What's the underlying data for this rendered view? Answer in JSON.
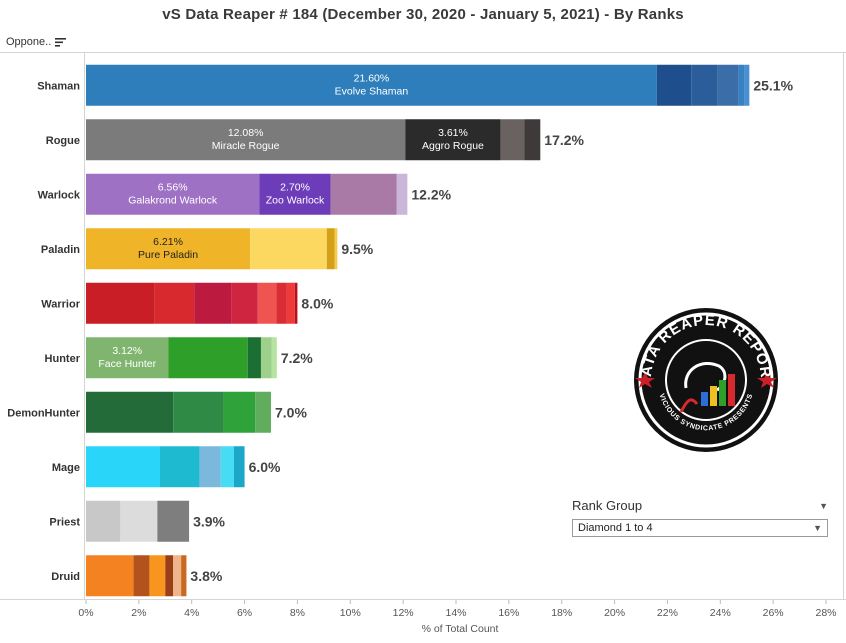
{
  "title": "vS Data Reaper #  184 (December 30, 2020 - January 5, 2021) - By Ranks",
  "column_header": "Oppone..",
  "rank_group": {
    "label": "Rank Group",
    "selected": "Diamond 1 to 4"
  },
  "logo": {
    "text_top": "DATA REAPER REPORT",
    "text_bottom": "VICIOUS SYNDICATE PRESENTS"
  },
  "chart_data": {
    "type": "bar",
    "orientation": "horizontal",
    "stacked": true,
    "xlabel": "% of Total Count",
    "xlim": [
      0,
      28
    ],
    "xticks": [
      0,
      2,
      4,
      6,
      8,
      10,
      12,
      14,
      16,
      18,
      20,
      22,
      24,
      26,
      28
    ],
    "xtick_format": "{v}%",
    "grid": false,
    "categories": [
      "Shaman",
      "Rogue",
      "Warlock",
      "Paladin",
      "Warrior",
      "Hunter",
      "DemonHunter",
      "Mage",
      "Priest",
      "Druid"
    ],
    "totals": [
      "25.1%",
      "17.2%",
      "12.2%",
      "9.5%",
      "8.0%",
      "7.2%",
      "7.0%",
      "6.0%",
      "3.9%",
      "3.8%"
    ],
    "bars": [
      {
        "category": "Shaman",
        "segments": [
          {
            "value": 21.6,
            "color": "#2e7ebc",
            "label": "21.60%",
            "name": "Evolve Shaman"
          },
          {
            "value": 1.3,
            "color": "#1f4e8c"
          },
          {
            "value": 1.0,
            "color": "#2a5d9a"
          },
          {
            "value": 0.8,
            "color": "#3b6ea8"
          },
          {
            "value": 0.2,
            "color": "#3680c4"
          },
          {
            "value": 0.2,
            "color": "#4a90d0"
          }
        ]
      },
      {
        "category": "Rogue",
        "segments": [
          {
            "value": 12.08,
            "color": "#7b7b7b",
            "label": "12.08%",
            "name": "Miracle Rogue"
          },
          {
            "value": 3.61,
            "color": "#2b2b2b",
            "label": "3.61%",
            "name": "Aggro Rogue"
          },
          {
            "value": 0.9,
            "color": "#6a6161"
          },
          {
            "value": 0.6,
            "color": "#3f3a3a"
          }
        ]
      },
      {
        "category": "Warlock",
        "segments": [
          {
            "value": 6.56,
            "color": "#9e71c4",
            "label": "6.56%",
            "name": "Galakrond Warlock"
          },
          {
            "value": 2.7,
            "color": "#6d3cb8",
            "label": "2.70%",
            "name": "Zoo Warlock"
          },
          {
            "value": 2.5,
            "color": "#a97aa5"
          },
          {
            "value": 0.4,
            "color": "#c9b6d8"
          }
        ]
      },
      {
        "category": "Paladin",
        "segments": [
          {
            "value": 6.21,
            "color": "#f0b428",
            "label": "6.21%",
            "name": "Pure Paladin"
          },
          {
            "value": 2.9,
            "color": "#fdd860"
          },
          {
            "value": 0.3,
            "color": "#d4a017"
          },
          {
            "value": 0.1,
            "color": "#f7c948"
          }
        ]
      },
      {
        "category": "Warrior",
        "segments": [
          {
            "value": 2.6,
            "color": "#c91e26"
          },
          {
            "value": 1.5,
            "color": "#d8292f"
          },
          {
            "value": 1.4,
            "color": "#bc1a3e"
          },
          {
            "value": 1.0,
            "color": "#cf2540"
          },
          {
            "value": 0.7,
            "color": "#ef5450"
          },
          {
            "value": 0.4,
            "color": "#d92c35"
          },
          {
            "value": 0.3,
            "color": "#ef3a3a"
          },
          {
            "value": 0.1,
            "color": "#b31420"
          }
        ]
      },
      {
        "category": "Hunter",
        "segments": [
          {
            "value": 3.12,
            "color": "#7fb56f",
            "label": "3.12%",
            "name": "Face Hunter"
          },
          {
            "value": 3.0,
            "color": "#2ea02a"
          },
          {
            "value": 0.5,
            "color": "#1b6f32"
          },
          {
            "value": 0.4,
            "color": "#9dd08a"
          },
          {
            "value": 0.2,
            "color": "#b6e3a0"
          }
        ]
      },
      {
        "category": "DemonHunter",
        "segments": [
          {
            "value": 3.3,
            "color": "#236b39"
          },
          {
            "value": 1.9,
            "color": "#2f8a45"
          },
          {
            "value": 1.2,
            "color": "#2fa33a"
          },
          {
            "value": 0.6,
            "color": "#5fad5d"
          }
        ]
      },
      {
        "category": "Mage",
        "segments": [
          {
            "value": 2.8,
            "color": "#29d6fa"
          },
          {
            "value": 1.5,
            "color": "#1ebbd0"
          },
          {
            "value": 0.8,
            "color": "#7cb7dc"
          },
          {
            "value": 0.5,
            "color": "#45dcf4"
          },
          {
            "value": 0.4,
            "color": "#1ba7c8"
          }
        ]
      },
      {
        "category": "Priest",
        "segments": [
          {
            "value": 1.3,
            "color": "#c8c8c8"
          },
          {
            "value": 1.4,
            "color": "#dcdcdc"
          },
          {
            "value": 1.2,
            "color": "#7e7e7e"
          }
        ]
      },
      {
        "category": "Druid",
        "segments": [
          {
            "value": 1.8,
            "color": "#f58220"
          },
          {
            "value": 0.6,
            "color": "#b4521e"
          },
          {
            "value": 0.6,
            "color": "#f7951f"
          },
          {
            "value": 0.3,
            "color": "#9a3e18"
          },
          {
            "value": 0.3,
            "color": "#f0b48c"
          },
          {
            "value": 0.2,
            "color": "#c96a1e"
          }
        ]
      }
    ]
  }
}
